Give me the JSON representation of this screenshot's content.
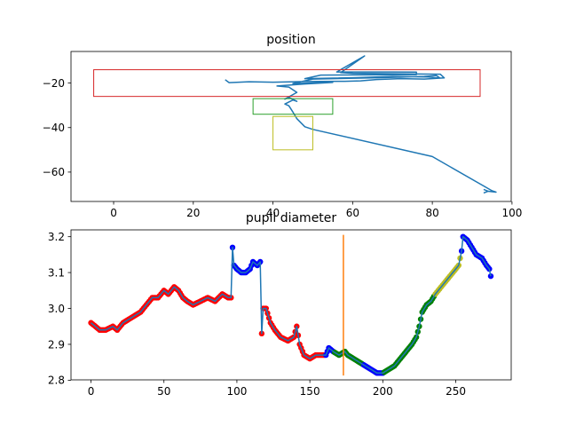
{
  "chart_data": [
    {
      "type": "line",
      "title": "position",
      "xlim": [
        -10.7,
        99.8
      ],
      "ylim": [
        -73.2,
        -5.8
      ],
      "x_ticks": [
        0,
        20,
        40,
        60,
        80,
        100
      ],
      "y_ticks": [
        -60,
        -40,
        -20
      ],
      "grid": false,
      "series": [
        {
          "color": "#1f77b4",
          "points": [
            [
              28,
              -18.5
            ],
            [
              29,
              -19.8
            ],
            [
              34,
              -19.4
            ],
            [
              40,
              -19.6
            ],
            [
              48,
              -19.3
            ],
            [
              58,
              -19.2
            ],
            [
              62,
              -19.0
            ],
            [
              66,
              -18.4
            ],
            [
              72,
              -18.0
            ],
            [
              78,
              -18.2
            ],
            [
              83,
              -17.7
            ],
            [
              82,
              -16.0
            ],
            [
              60,
              -15.6
            ],
            [
              57,
              -15.3
            ],
            [
              63,
              -7.8
            ],
            [
              56,
              -15.0
            ],
            [
              70,
              -15.0
            ],
            [
              76,
              -15.1
            ],
            [
              76,
              -16.2
            ],
            [
              52,
              -16.4
            ],
            [
              48,
              -18.0
            ],
            [
              60,
              -17.6
            ],
            [
              70,
              -17.0
            ],
            [
              79,
              -17.3
            ],
            [
              82,
              -17.8
            ],
            [
              81,
              -16.6
            ],
            [
              78,
              -17.0
            ],
            [
              66,
              -17.6
            ],
            [
              50,
              -18.2
            ],
            [
              45,
              -20.2
            ],
            [
              55,
              -19.7
            ],
            [
              48,
              -20.4
            ],
            [
              41,
              -21.3
            ],
            [
              44,
              -21.8
            ],
            [
              46,
              -24.2
            ],
            [
              43,
              -27.2
            ],
            [
              44,
              -26.4
            ],
            [
              46,
              -28.2
            ],
            [
              45,
              -27.6
            ],
            [
              43,
              -29.4
            ],
            [
              44,
              -30.2
            ],
            [
              45,
              -33.0
            ],
            [
              46,
              -36.0
            ],
            [
              48,
              -39.6
            ],
            [
              50,
              -40.8
            ],
            [
              80,
              -53.0
            ],
            [
              95,
              -68.4
            ],
            [
              96,
              -69.0
            ],
            [
              94,
              -68.6
            ]
          ]
        }
      ],
      "boxes": [
        {
          "color": "#d62728",
          "x": [
            -5,
            92
          ],
          "y": [
            -26,
            -14
          ]
        },
        {
          "color": "#2ca02c",
          "x": [
            35,
            55
          ],
          "y": [
            -34,
            -27
          ]
        },
        {
          "color": "#bcbd22",
          "x": [
            40,
            50
          ],
          "y": [
            -50,
            -35
          ]
        }
      ],
      "vline": null
    },
    {
      "type": "line+scatter",
      "title": "pupil diameter",
      "xlim": [
        -13.7,
        288.0
      ],
      "ylim": [
        2.801,
        3.219
      ],
      "x_ticks": [
        0,
        50,
        100,
        150,
        200,
        250
      ],
      "y_ticks": [
        2.8,
        2.9,
        3.0,
        3.1,
        3.2
      ],
      "grid": false,
      "line_color": "#1f77b4",
      "anchors": [
        [
          0,
          2.96
        ],
        [
          3,
          2.95
        ],
        [
          6,
          2.94
        ],
        [
          10,
          2.94
        ],
        [
          15,
          2.95
        ],
        [
          18,
          2.94
        ],
        [
          22,
          2.96
        ],
        [
          26,
          2.97
        ],
        [
          30,
          2.98
        ],
        [
          34,
          2.99
        ],
        [
          38,
          3.01
        ],
        [
          42,
          3.03
        ],
        [
          46,
          3.03
        ],
        [
          50,
          3.05
        ],
        [
          53,
          3.04
        ],
        [
          57,
          3.06
        ],
        [
          60,
          3.05
        ],
        [
          63,
          3.03
        ],
        [
          66,
          3.02
        ],
        [
          70,
          3.01
        ],
        [
          75,
          3.02
        ],
        [
          80,
          3.03
        ],
        [
          85,
          3.02
        ],
        [
          90,
          3.04
        ],
        [
          94,
          3.03
        ],
        [
          96,
          3.03
        ],
        [
          97,
          3.17
        ],
        [
          98,
          3.12
        ],
        [
          100,
          3.11
        ],
        [
          103,
          3.1
        ],
        [
          106,
          3.1
        ],
        [
          109,
          3.11
        ],
        [
          111,
          3.13
        ],
        [
          114,
          3.12
        ],
        [
          116,
          3.13
        ],
        [
          117,
          2.93
        ],
        [
          118,
          3.0
        ],
        [
          120,
          3.0
        ],
        [
          123,
          2.96
        ],
        [
          126,
          2.94
        ],
        [
          130,
          2.92
        ],
        [
          135,
          2.91
        ],
        [
          139,
          2.92
        ],
        [
          141,
          2.95
        ],
        [
          143,
          2.9
        ],
        [
          146,
          2.87
        ],
        [
          150,
          2.86
        ],
        [
          154,
          2.87
        ],
        [
          158,
          2.87
        ],
        [
          161,
          2.87
        ],
        [
          163,
          2.89
        ],
        [
          166,
          2.88
        ],
        [
          170,
          2.87
        ],
        [
          174,
          2.88
        ],
        [
          176,
          2.87
        ],
        [
          180,
          2.86
        ],
        [
          184,
          2.85
        ],
        [
          188,
          2.84
        ],
        [
          192,
          2.83
        ],
        [
          196,
          2.82
        ],
        [
          200,
          2.82
        ],
        [
          204,
          2.83
        ],
        [
          208,
          2.84
        ],
        [
          212,
          2.86
        ],
        [
          216,
          2.88
        ],
        [
          220,
          2.9
        ],
        [
          223,
          2.92
        ],
        [
          225,
          2.95
        ],
        [
          227,
          2.99
        ],
        [
          230,
          3.01
        ],
        [
          233,
          3.02
        ],
        [
          236,
          3.04
        ],
        [
          240,
          3.06
        ],
        [
          244,
          3.08
        ],
        [
          248,
          3.1
        ],
        [
          252,
          3.12
        ],
        [
          254,
          3.16
        ],
        [
          255,
          3.2
        ],
        [
          258,
          3.19
        ],
        [
          261,
          3.17
        ],
        [
          264,
          3.15
        ],
        [
          268,
          3.14
        ],
        [
          271,
          3.12
        ],
        [
          273,
          3.11
        ],
        [
          274,
          3.09
        ]
      ],
      "segments": [
        {
          "color": "#ff0000",
          "range": [
            0,
            96
          ]
        },
        {
          "color": "#0000ff",
          "range": [
            97,
            116
          ]
        },
        {
          "color": "#ff0000",
          "range": [
            117,
            160
          ]
        },
        {
          "color": "#0000ff",
          "range": [
            161,
            166
          ]
        },
        {
          "color": "#008000",
          "range": [
            167,
            186
          ]
        },
        {
          "color": "#0000ff",
          "range": [
            187,
            200
          ]
        },
        {
          "color": "#008000",
          "range": [
            201,
            235
          ]
        },
        {
          "color": "#bcbd22",
          "range": [
            236,
            253
          ]
        },
        {
          "color": "#0000ff",
          "range": [
            254,
            274
          ]
        }
      ],
      "vline": {
        "x": 173,
        "y": [
          2.813,
          3.205
        ],
        "color": "#ff7f0e"
      },
      "boxes": []
    }
  ]
}
